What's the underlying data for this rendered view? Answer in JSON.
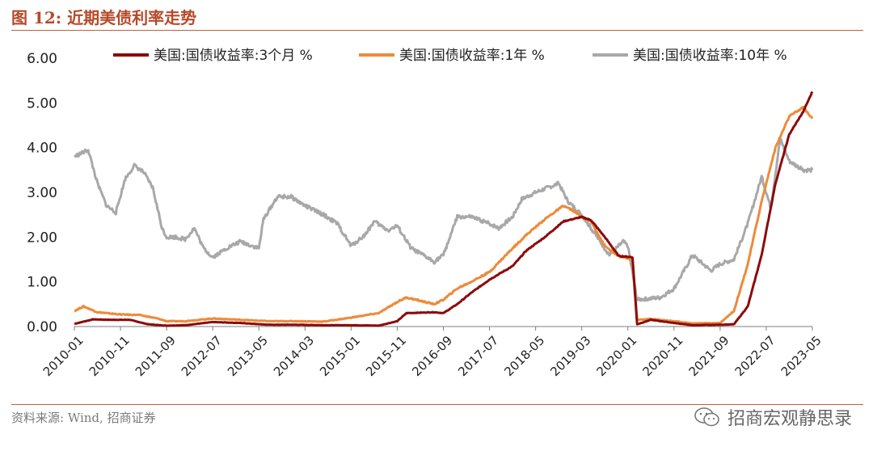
{
  "header": {
    "title": "图 12:  近期美债利率走势"
  },
  "footer": {
    "source": "资料来源:  Wind, 招商证券",
    "watermark": "招商宏观静思录"
  },
  "colors": {
    "accent": "#c0613a",
    "series_3m": "#8b0b0b",
    "series_1y": "#ee8a3a",
    "series_10y": "#a8a8a8"
  },
  "chart_data": {
    "type": "line",
    "ylim": [
      0,
      6
    ],
    "yticks": [
      "0.00",
      "1.00",
      "2.00",
      "3.00",
      "4.00",
      "5.00",
      "6.00"
    ],
    "xticks": [
      "2010-01",
      "2010-11",
      "2011-09",
      "2012-07",
      "2013-05",
      "2014-03",
      "2015-01",
      "2015-11",
      "2016-09",
      "2017-07",
      "2018-05",
      "2019-03",
      "2020-01",
      "2020-11",
      "2021-09",
      "2022-07",
      "2023-05"
    ],
    "legend_position": "top",
    "series": [
      {
        "name": "美国:国债收益率:3个月 %",
        "color": "#8b0b0b",
        "points": [
          [
            "2010-01",
            0.06
          ],
          [
            "2010-05",
            0.16
          ],
          [
            "2010-09",
            0.15
          ],
          [
            "2011-01",
            0.15
          ],
          [
            "2011-05",
            0.05
          ],
          [
            "2011-09",
            0.02
          ],
          [
            "2012-01",
            0.03
          ],
          [
            "2012-07",
            0.1
          ],
          [
            "2013-01",
            0.08
          ],
          [
            "2013-07",
            0.04
          ],
          [
            "2014-01",
            0.04
          ],
          [
            "2014-07",
            0.03
          ],
          [
            "2015-01",
            0.03
          ],
          [
            "2015-07",
            0.02
          ],
          [
            "2015-11",
            0.12
          ],
          [
            "2016-01",
            0.3
          ],
          [
            "2016-07",
            0.32
          ],
          [
            "2016-09",
            0.3
          ],
          [
            "2016-12",
            0.5
          ],
          [
            "2017-03",
            0.75
          ],
          [
            "2017-07",
            1.05
          ],
          [
            "2017-12",
            1.35
          ],
          [
            "2018-03",
            1.7
          ],
          [
            "2018-07",
            2.0
          ],
          [
            "2018-11",
            2.35
          ],
          [
            "2019-03",
            2.45
          ],
          [
            "2019-05",
            2.38
          ],
          [
            "2019-08",
            2.0
          ],
          [
            "2019-11",
            1.58
          ],
          [
            "2020-02",
            1.55
          ],
          [
            "2020-03",
            0.05
          ],
          [
            "2020-06",
            0.15
          ],
          [
            "2020-11",
            0.08
          ],
          [
            "2021-03",
            0.03
          ],
          [
            "2021-09",
            0.04
          ],
          [
            "2021-12",
            0.05
          ],
          [
            "2022-03",
            0.45
          ],
          [
            "2022-06",
            1.6
          ],
          [
            "2022-09",
            3.2
          ],
          [
            "2022-12",
            4.3
          ],
          [
            "2023-03",
            4.8
          ],
          [
            "2023-05",
            5.25
          ]
        ]
      },
      {
        "name": "美国:国债收益率:1年 %",
        "color": "#ee8a3a",
        "points": [
          [
            "2010-01",
            0.35
          ],
          [
            "2010-03",
            0.45
          ],
          [
            "2010-06",
            0.32
          ],
          [
            "2010-11",
            0.27
          ],
          [
            "2011-03",
            0.26
          ],
          [
            "2011-07",
            0.18
          ],
          [
            "2011-09",
            0.12
          ],
          [
            "2012-01",
            0.12
          ],
          [
            "2012-07",
            0.18
          ],
          [
            "2013-01",
            0.15
          ],
          [
            "2013-07",
            0.12
          ],
          [
            "2014-01",
            0.12
          ],
          [
            "2014-07",
            0.11
          ],
          [
            "2015-01",
            0.2
          ],
          [
            "2015-07",
            0.3
          ],
          [
            "2015-11",
            0.55
          ],
          [
            "2016-01",
            0.65
          ],
          [
            "2016-07",
            0.5
          ],
          [
            "2016-09",
            0.6
          ],
          [
            "2016-12",
            0.85
          ],
          [
            "2017-03",
            1.0
          ],
          [
            "2017-07",
            1.22
          ],
          [
            "2017-12",
            1.75
          ],
          [
            "2018-03",
            2.05
          ],
          [
            "2018-07",
            2.4
          ],
          [
            "2018-11",
            2.7
          ],
          [
            "2019-01",
            2.6
          ],
          [
            "2019-03",
            2.45
          ],
          [
            "2019-05",
            2.35
          ],
          [
            "2019-08",
            1.8
          ],
          [
            "2019-11",
            1.57
          ],
          [
            "2020-02",
            1.5
          ],
          [
            "2020-03",
            0.15
          ],
          [
            "2020-06",
            0.17
          ],
          [
            "2020-11",
            0.12
          ],
          [
            "2021-03",
            0.07
          ],
          [
            "2021-09",
            0.08
          ],
          [
            "2021-12",
            0.35
          ],
          [
            "2022-03",
            1.4
          ],
          [
            "2022-06",
            2.8
          ],
          [
            "2022-09",
            4.0
          ],
          [
            "2022-12",
            4.7
          ],
          [
            "2023-03",
            4.9
          ],
          [
            "2023-05",
            4.65
          ]
        ]
      },
      {
        "name": "美国:国债收益率:10年 %",
        "color": "#a8a8a8",
        "points": [
          [
            "2010-01",
            3.8
          ],
          [
            "2010-04",
            3.95
          ],
          [
            "2010-06",
            3.2
          ],
          [
            "2010-08",
            2.7
          ],
          [
            "2010-10",
            2.55
          ],
          [
            "2010-12",
            3.3
          ],
          [
            "2011-02",
            3.6
          ],
          [
            "2011-04",
            3.45
          ],
          [
            "2011-06",
            3.1
          ],
          [
            "2011-08",
            2.2
          ],
          [
            "2011-09",
            2.0
          ],
          [
            "2011-11",
            2.0
          ],
          [
            "2012-01",
            1.95
          ],
          [
            "2012-03",
            2.2
          ],
          [
            "2012-05",
            1.75
          ],
          [
            "2012-07",
            1.55
          ],
          [
            "2012-10",
            1.75
          ],
          [
            "2013-01",
            1.9
          ],
          [
            "2013-05",
            1.75
          ],
          [
            "2013-06",
            2.4
          ],
          [
            "2013-09",
            2.9
          ],
          [
            "2013-12",
            2.9
          ],
          [
            "2014-03",
            2.7
          ],
          [
            "2014-07",
            2.5
          ],
          [
            "2014-10",
            2.3
          ],
          [
            "2015-01",
            1.8
          ],
          [
            "2015-04",
            2.05
          ],
          [
            "2015-06",
            2.35
          ],
          [
            "2015-09",
            2.15
          ],
          [
            "2015-11",
            2.25
          ],
          [
            "2016-02",
            1.75
          ],
          [
            "2016-07",
            1.45
          ],
          [
            "2016-09",
            1.6
          ],
          [
            "2016-12",
            2.45
          ],
          [
            "2017-03",
            2.45
          ],
          [
            "2017-07",
            2.3
          ],
          [
            "2017-09",
            2.2
          ],
          [
            "2017-12",
            2.45
          ],
          [
            "2018-02",
            2.85
          ],
          [
            "2018-05",
            3.0
          ],
          [
            "2018-10",
            3.2
          ],
          [
            "2018-12",
            2.8
          ],
          [
            "2019-03",
            2.5
          ],
          [
            "2019-06",
            2.05
          ],
          [
            "2019-09",
            1.6
          ],
          [
            "2019-12",
            1.9
          ],
          [
            "2020-01",
            1.8
          ],
          [
            "2020-03",
            0.6
          ],
          [
            "2020-08",
            0.65
          ],
          [
            "2020-11",
            0.85
          ],
          [
            "2021-02",
            1.4
          ],
          [
            "2021-03",
            1.6
          ],
          [
            "2021-07",
            1.25
          ],
          [
            "2021-09",
            1.4
          ],
          [
            "2021-12",
            1.5
          ],
          [
            "2022-03",
            2.3
          ],
          [
            "2022-06",
            3.35
          ],
          [
            "2022-08",
            2.65
          ],
          [
            "2022-10",
            4.2
          ],
          [
            "2022-12",
            3.7
          ],
          [
            "2023-03",
            3.5
          ],
          [
            "2023-05",
            3.5
          ]
        ]
      }
    ]
  }
}
